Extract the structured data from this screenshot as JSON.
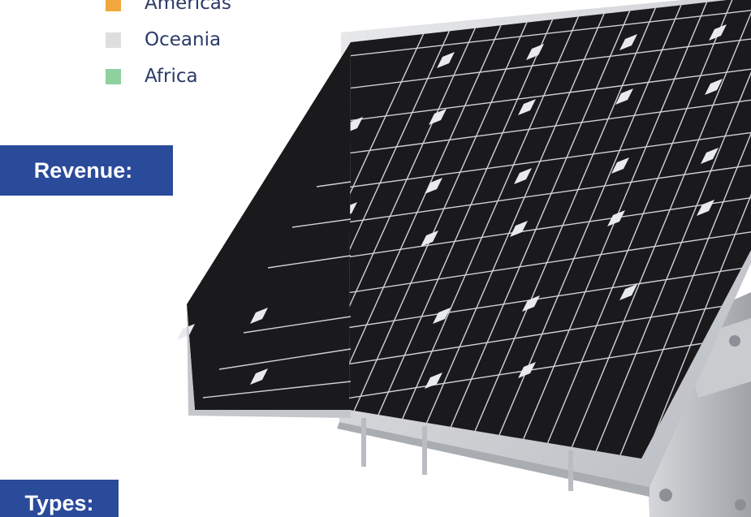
{
  "legend": {
    "items": [
      {
        "label": "Americas",
        "color": "#f0a83c"
      },
      {
        "label": "Oceania",
        "color": "#dedede"
      },
      {
        "label": "Africa",
        "color": "#8fd19e"
      }
    ]
  },
  "headers": {
    "revenue": {
      "label": "Revenue:",
      "color": "#2a4a9a"
    },
    "types": {
      "label": "Types:",
      "color": "#2a4a9a"
    }
  },
  "image": {
    "icon": "solar-panel-icon"
  }
}
